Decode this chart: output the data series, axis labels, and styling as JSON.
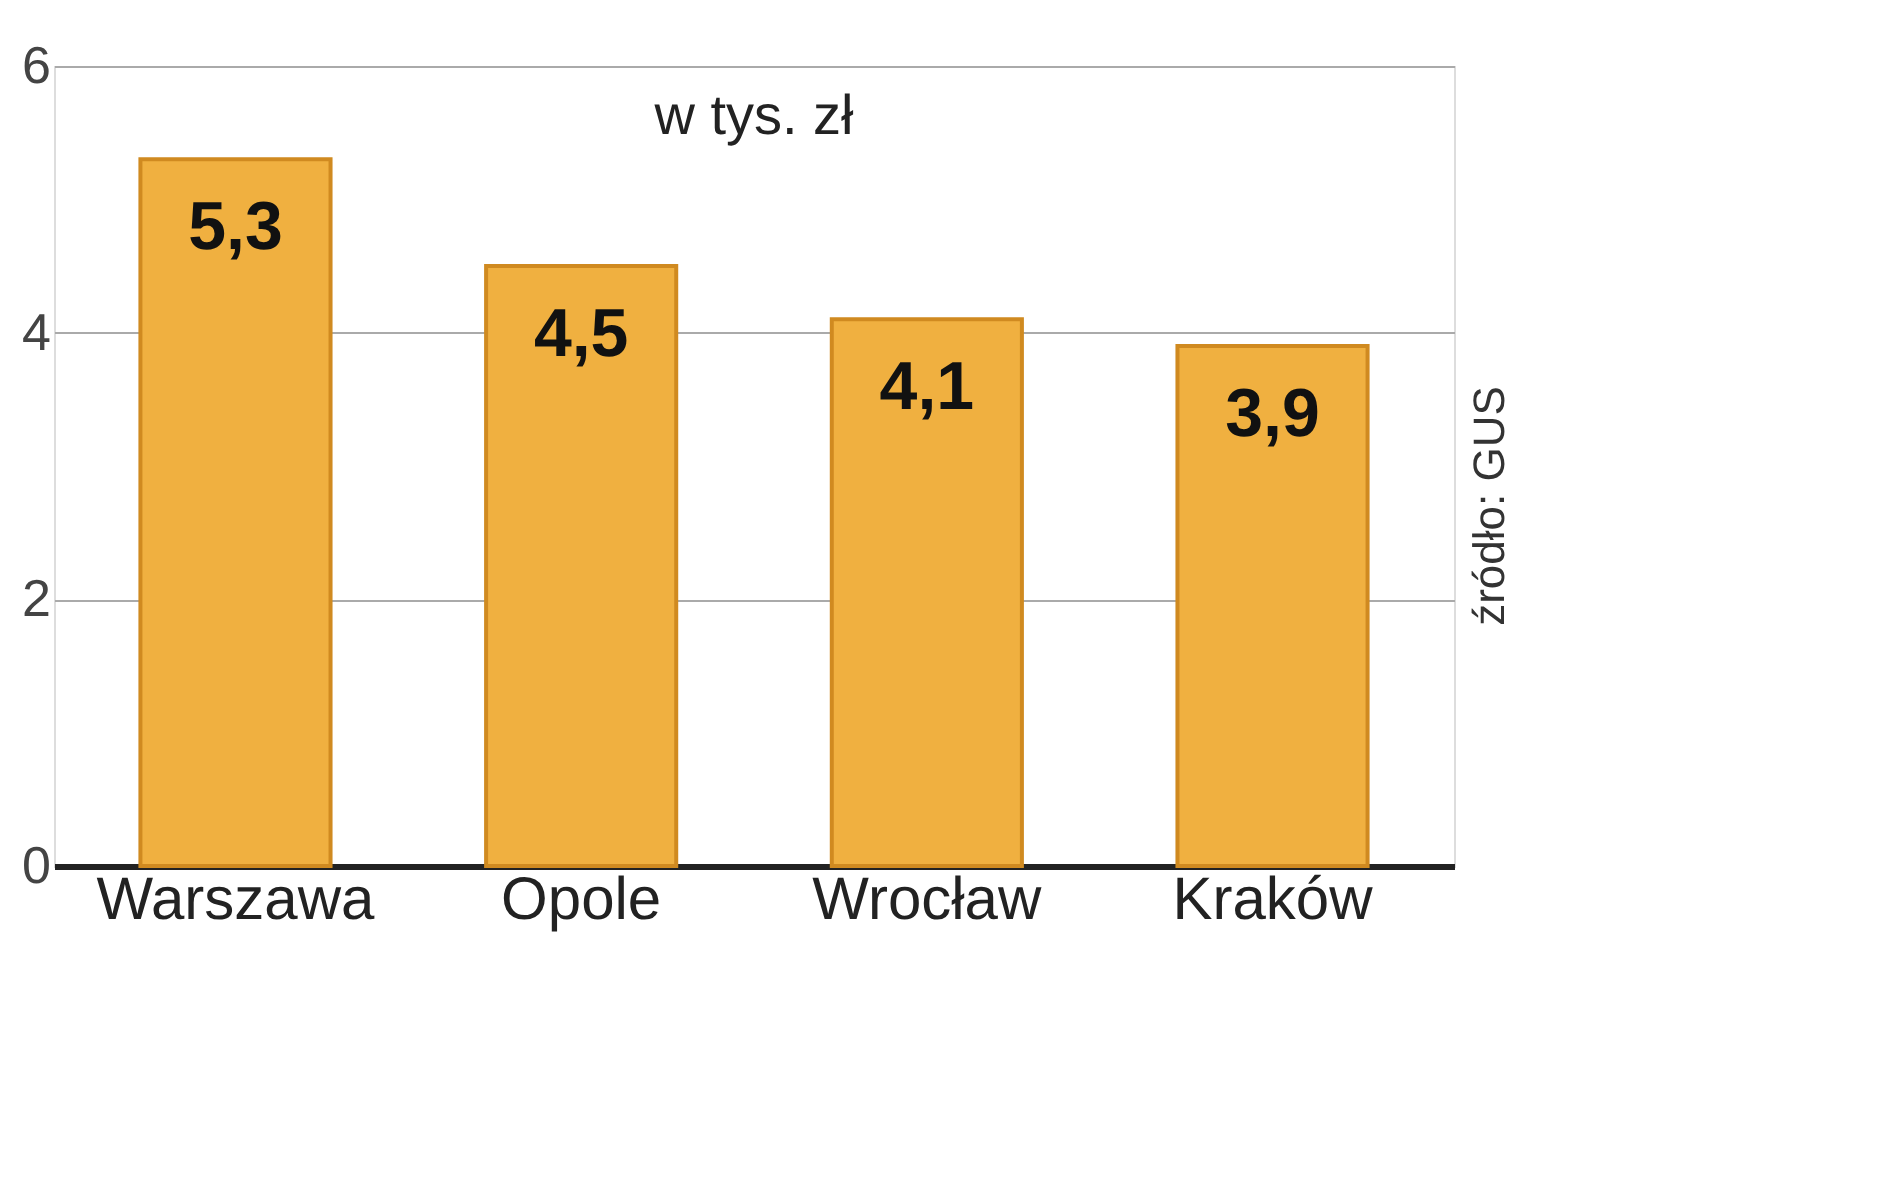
{
  "chart_data": {
    "type": "bar",
    "subtitle": "w tys. zł",
    "categories": [
      "Warszawa",
      "Opole",
      "Wrocław",
      "Kraków"
    ],
    "values": [
      5.3,
      4.5,
      4.1,
      3.9
    ],
    "value_labels": [
      "5,3",
      "4,5",
      "4,1",
      "3,9"
    ],
    "color": "#f0b040",
    "ylim": [
      0,
      6
    ],
    "yticks": [
      0,
      2,
      4,
      6
    ],
    "grid": "y",
    "annotations": [
      "źródło: GUS"
    ]
  }
}
